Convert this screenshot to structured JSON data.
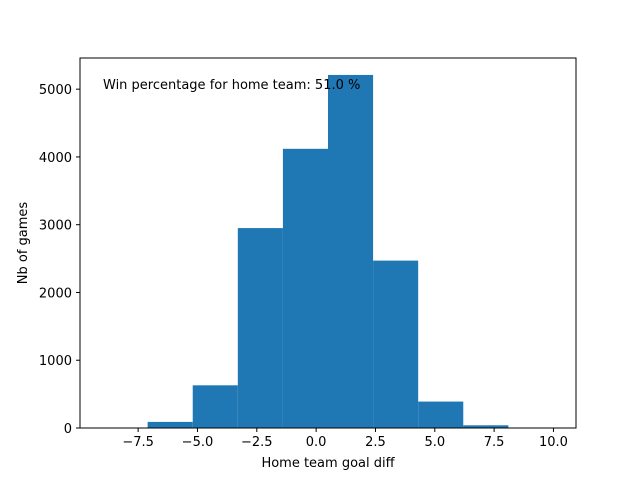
{
  "chart_data": {
    "type": "bar",
    "xlabel": "Home team goal diff",
    "ylabel": "Nb of games",
    "annotation": "Win percentage for home team: 51.0 %",
    "xlim": [
      -9.95,
      10.95
    ],
    "ylim": [
      0,
      5460
    ],
    "xticks": [
      -7.5,
      -5.0,
      -2.5,
      0.0,
      2.5,
      5.0,
      7.5,
      10.0
    ],
    "xtick_labels": [
      "−7.5",
      "−5.0",
      "−2.5",
      "0.0",
      "2.5",
      "5.0",
      "7.5",
      "10.0"
    ],
    "yticks": [
      0,
      1000,
      2000,
      3000,
      4000,
      5000
    ],
    "ytick_labels": [
      "0",
      "1000",
      "2000",
      "3000",
      "4000",
      "5000"
    ],
    "bin_edges": [
      -9.0,
      -7.1,
      -5.2,
      -3.3,
      -1.4,
      0.5,
      2.4,
      4.3,
      6.2,
      8.1,
      10.0
    ],
    "values": [
      0,
      90,
      630,
      2950,
      4120,
      5210,
      2470,
      390,
      40,
      5
    ],
    "bar_color": "#1f77b4",
    "grid": false,
    "legend": "none"
  }
}
